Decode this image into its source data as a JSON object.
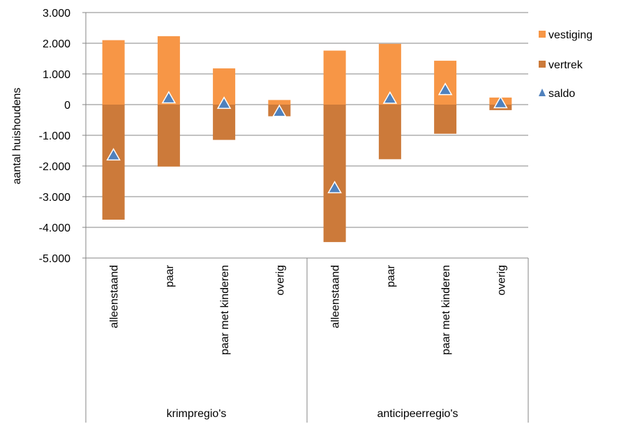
{
  "chart_data": {
    "type": "bar",
    "ylabel": "aantal huishoudens",
    "ylim": [
      -5000,
      3000
    ],
    "ytick_step": 1000,
    "ytick_labels": [
      "3.000",
      "2.000",
      "1.000",
      "0",
      "-1.000",
      "-2.000",
      "-3.000",
      "-4.000",
      "-5.000"
    ],
    "grid": true,
    "legend_position": "right",
    "groups": [
      {
        "name": "krimpregio's",
        "categories": [
          "alleenstaand",
          "paar",
          "paar met kinderen",
          "overig"
        ]
      },
      {
        "name": "anticipeerregio's",
        "categories": [
          "alleenstaand",
          "paar",
          "paar met kinderen",
          "overig"
        ]
      }
    ],
    "series": [
      {
        "name": "vestiging",
        "color": "#F79646",
        "marker": "bar",
        "values": [
          2100,
          2230,
          1180,
          150,
          1760,
          1980,
          1430,
          230
        ]
      },
      {
        "name": "vertrek",
        "color": "#CC7A3A",
        "marker": "bar",
        "values": [
          -3750,
          -2020,
          -1150,
          -380,
          -4480,
          -1780,
          -950,
          -180
        ]
      },
      {
        "name": "saldo",
        "color": "#4F81BD",
        "marker": "triangle",
        "values": [
          -1650,
          210,
          30,
          -230,
          -2720,
          200,
          480,
          50
        ]
      }
    ]
  }
}
